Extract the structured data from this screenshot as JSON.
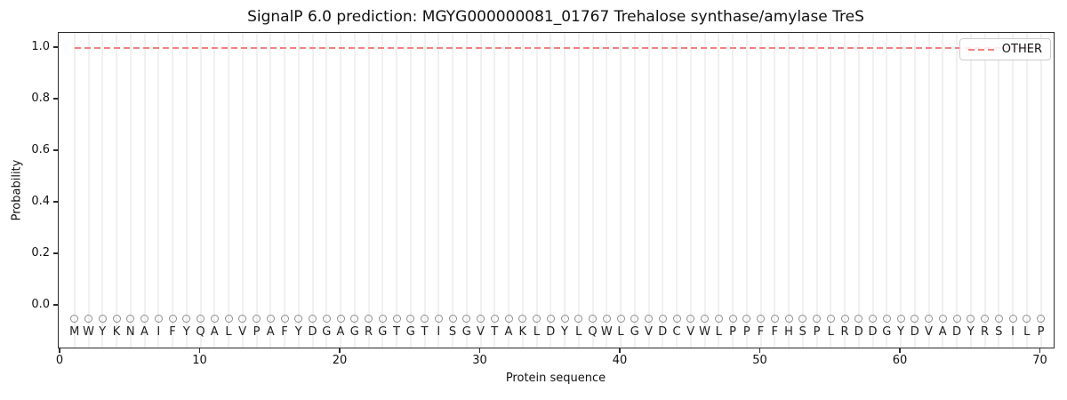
{
  "chart_data": {
    "type": "line",
    "title": "SignalP 6.0 prediction: MGYG000000081_01767 Trehalose synthase/amylase TreS",
    "xlabel": "Protein sequence",
    "ylabel": "Probability",
    "xticks": [
      {
        "value": 0,
        "label": "0"
      },
      {
        "value": 10,
        "label": "10"
      },
      {
        "value": 20,
        "label": "20"
      },
      {
        "value": 30,
        "label": "30"
      },
      {
        "value": 40,
        "label": "40"
      },
      {
        "value": 50,
        "label": "50"
      },
      {
        "value": 60,
        "label": "60"
      },
      {
        "value": 70,
        "label": "70"
      }
    ],
    "yticks": [
      {
        "value": 0.0,
        "label": "0.0"
      },
      {
        "value": 0.2,
        "label": "0.2"
      },
      {
        "value": 0.4,
        "label": "0.4"
      },
      {
        "value": 0.6,
        "label": "0.6"
      },
      {
        "value": 0.8,
        "label": "0.8"
      },
      {
        "value": 1.0,
        "label": "1.0"
      }
    ],
    "xlim": [
      -0.15,
      71.05
    ],
    "ylim": [
      -0.17,
      1.06
    ],
    "grid": "vertical gridline at every residue position 1-70, no horizontal gridlines",
    "legend_position": "upper right",
    "sequence": "MWYKNAIFYQALVPAFYDGAGRGTGTISGVTAKLDYLQWLGVDCVWLPPFFHSPLRDDGYDVADYRSILP",
    "sequence_positions": {
      "first": 1,
      "last": 70
    },
    "series": [
      {
        "name": "OTHER",
        "linestyle": "dashed",
        "color": "#f28080",
        "x_start": 1,
        "x_end": 70,
        "value": 1.0,
        "note": "constant probability 1.0 across residues 1-70"
      }
    ],
    "residue_markers": {
      "symbol": "open-circle",
      "color": "#8f8f8f",
      "y": -0.05
    },
    "residue_letters_y": -0.103,
    "legend_entries": [
      {
        "label": "OTHER",
        "linestyle": "dashed",
        "color": "#f28080"
      }
    ]
  },
  "colors": {
    "background": "#ffffff",
    "other_line": "#f28080",
    "marker": "#8f8f8f",
    "gridline": "#f0f0f0",
    "spine": "#2b2b2b",
    "text": "#111111",
    "legend_border": "#cccccc"
  }
}
